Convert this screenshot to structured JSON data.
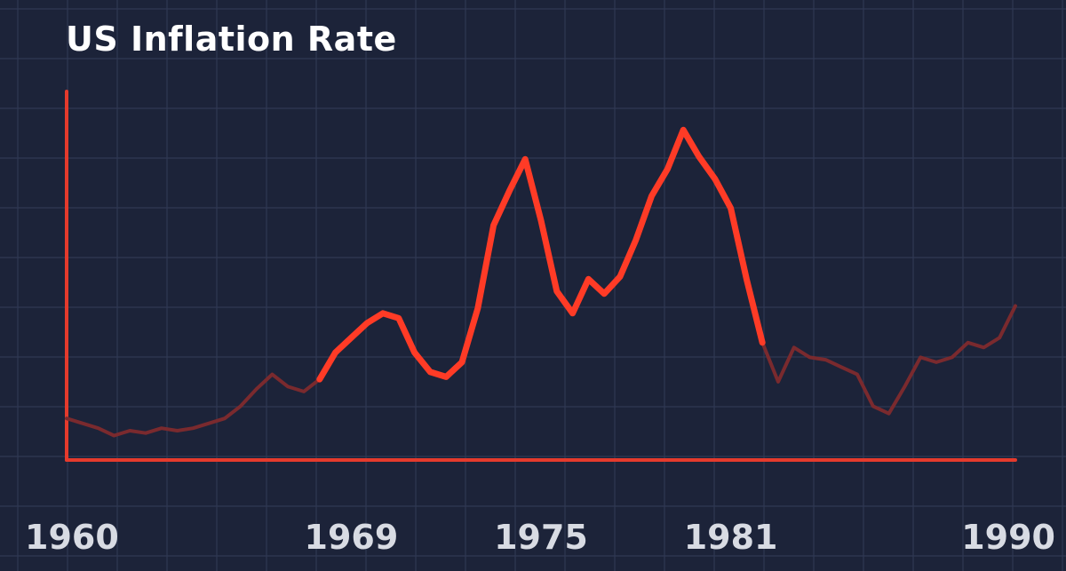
{
  "title": "US Inflation Rate",
  "colors": {
    "background": "#1c2339",
    "grid": "#2f3853",
    "axis": "#e53a2c",
    "highlight": "#ff3b26",
    "faded": "#7a2a2e",
    "tick_text": "#d8dbe3"
  },
  "chart_data": {
    "type": "line",
    "title": "US Inflation Rate",
    "xlabel": "",
    "ylabel": "",
    "x_ticks": [
      "1960",
      "1969",
      "1975",
      "1981",
      "1990"
    ],
    "x_range": [
      1960,
      1990
    ],
    "y_range": [
      0,
      15
    ],
    "grid": true,
    "highlight_range": [
      1968,
      1982
    ],
    "series": [
      {
        "x": [
          1960.0,
          1960.5,
          1961.0,
          1961.5,
          1962.0,
          1962.5,
          1963.0,
          1963.5,
          1964.0,
          1964.5,
          1965.0,
          1965.5,
          1966.0,
          1966.5,
          1967.0,
          1967.5,
          1968.0,
          1968.5,
          1969.0,
          1969.5,
          1970.0,
          1970.5,
          1971.0,
          1971.5,
          1972.0,
          1972.5,
          1973.0,
          1973.5,
          1974.0,
          1974.5,
          1975.0,
          1975.5,
          1976.0,
          1976.5,
          1977.0,
          1977.5,
          1978.0,
          1978.5,
          1979.0,
          1979.5,
          1980.0,
          1980.5,
          1981.0,
          1981.5,
          1982.0,
          1982.5,
          1983.0,
          1983.5,
          1984.0,
          1984.5,
          1985.0,
          1985.5,
          1986.0,
          1986.5,
          1987.0,
          1987.5,
          1988.0,
          1988.5,
          1989.0,
          1989.5,
          1990.0
        ],
        "y": [
          1.7,
          1.5,
          1.3,
          1.0,
          1.2,
          1.1,
          1.3,
          1.2,
          1.3,
          1.5,
          1.7,
          2.2,
          2.9,
          3.5,
          3.0,
          2.8,
          3.3,
          4.4,
          5.0,
          5.6,
          6.0,
          5.8,
          4.4,
          3.6,
          3.4,
          4.0,
          6.2,
          9.6,
          11.0,
          12.3,
          9.8,
          6.9,
          6.0,
          7.4,
          6.8,
          7.5,
          9.0,
          10.8,
          11.9,
          13.5,
          12.4,
          11.5,
          10.3,
          7.4,
          4.8,
          3.2,
          4.6,
          4.2,
          4.1,
          3.8,
          3.5,
          2.2,
          1.9,
          3.0,
          4.2,
          4.0,
          4.2,
          4.8,
          4.6,
          5.0,
          6.3
        ]
      }
    ]
  }
}
